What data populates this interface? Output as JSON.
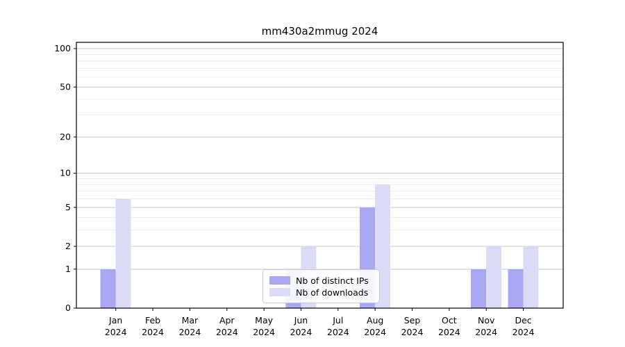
{
  "chart_data": {
    "type": "bar",
    "title": "mm430a2mmug 2024",
    "categories": [
      "Jan",
      "Feb",
      "Mar",
      "Apr",
      "May",
      "Jun",
      "Jul",
      "Aug",
      "Sep",
      "Oct",
      "Nov",
      "Dec"
    ],
    "category_year": "2024",
    "series": [
      {
        "name": "Nb of distinct IPs",
        "color": "#a8a8f2",
        "values": [
          1,
          0,
          0,
          0,
          0,
          1,
          0,
          5,
          0,
          0,
          1,
          1
        ]
      },
      {
        "name": "Nb of downloads",
        "color": "#dbdbf8",
        "values": [
          6,
          0,
          0,
          0,
          0,
          2,
          0,
          8,
          0,
          0,
          2,
          2
        ]
      }
    ],
    "yscale": "log1p",
    "ylim": [
      0,
      112
    ],
    "y_major_ticks": [
      0,
      1,
      2,
      5,
      10,
      20,
      50,
      100
    ],
    "y_minor_gridlines": [
      3,
      4,
      6,
      7,
      8,
      9,
      30,
      40,
      60,
      70,
      80,
      90
    ],
    "grid": "on",
    "legend_position": "lower center",
    "colors": {
      "major_grid": "#c8c8c8",
      "minor_grid": "#ececec",
      "spine": "#000000",
      "text": "#000000",
      "background": "#ffffff"
    }
  }
}
